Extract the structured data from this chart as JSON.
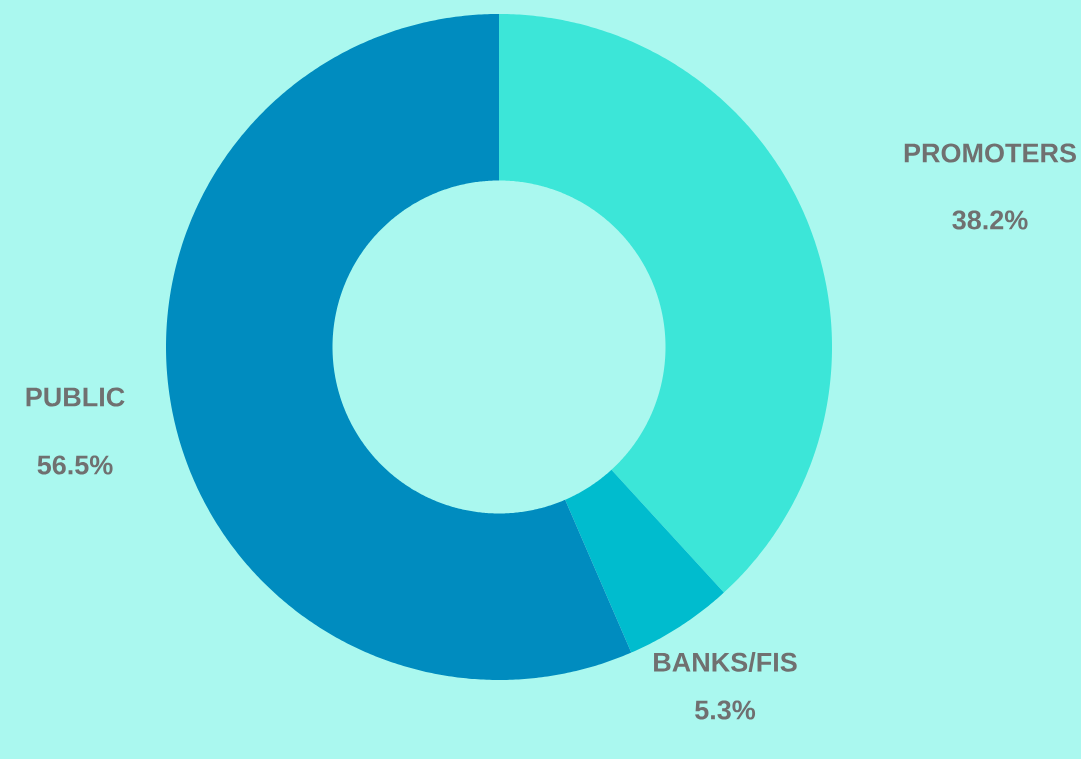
{
  "chart_data": {
    "type": "donut",
    "categories": [
      "PROMOTERS",
      "BANKS/FIS",
      "PUBLIC"
    ],
    "values": [
      38.2,
      5.3,
      56.5
    ],
    "colors": [
      "#3ce6d8",
      "#00bcce",
      "#008cbf"
    ],
    "value_labels": [
      "38.2%",
      "5.3%",
      "56.5%"
    ]
  }
}
